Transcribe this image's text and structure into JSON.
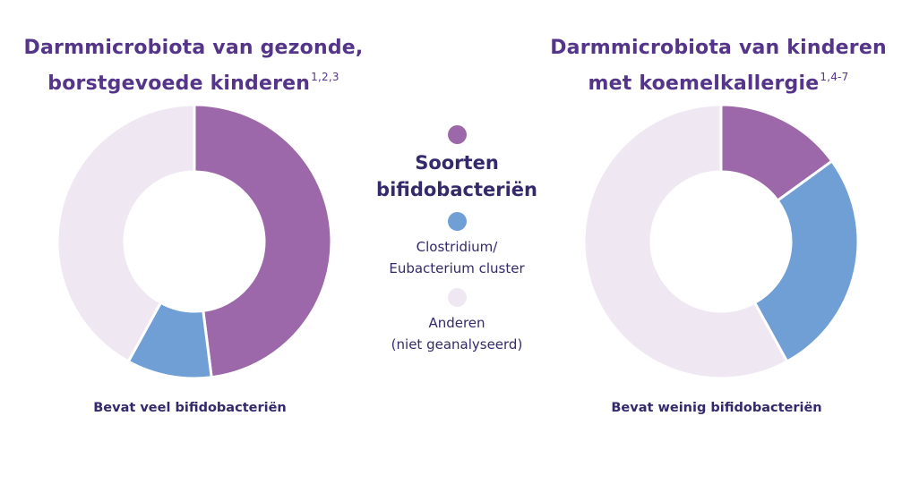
{
  "chart_data": [
    {
      "type": "donut",
      "title": "Darmmicrobiota van gezonde, borstgevoede kinderen",
      "title_sup": "1,2,3",
      "caption": "Bevat veel bifidobacteriën",
      "slices": [
        {
          "label": "Soorten bifidobacteriën",
          "value": 48,
          "color": "#9d68a9"
        },
        {
          "label": "Clostridium/ Eubacterium cluster",
          "value": 10,
          "color": "#6f9fd5"
        },
        {
          "label": "Anderen (niet geanalyseerd)",
          "value": 42,
          "color": "#efe8f3"
        }
      ]
    },
    {
      "type": "donut",
      "title": "Darmmicrobiota van kinderen met koemelkallergie",
      "title_sup": "1,4-7",
      "caption": "Bevat weinig bifidobacteriën",
      "slices": [
        {
          "label": "Soorten bifidobacteriën",
          "value": 15,
          "color": "#9d68a9"
        },
        {
          "label": "Clostridium/ Eubacterium cluster",
          "value": 27,
          "color": "#6f9fd5"
        },
        {
          "label": "Anderen (niet geanalyseerd)",
          "value": 58,
          "color": "#efe8f3"
        }
      ]
    }
  ],
  "legend": [
    {
      "line1": "Soorten",
      "line2": "bifidobacteriën",
      "color": "#9d68a9"
    },
    {
      "line1": "Clostridium/",
      "line2": "Eubacterium cluster",
      "color": "#6f9fd5"
    },
    {
      "line1": "Anderen",
      "line2": "(niet geanalyseerd)",
      "color": "#efe8f3"
    }
  ],
  "titles": {
    "left": {
      "line1": "Darmmicrobiota van gezonde,",
      "line2": "borstgevoede kinderen",
      "sup": "1,2,3"
    },
    "right": {
      "line1": "Darmmicrobiota van kinderen",
      "line2": "met koemelkallergie",
      "sup": "1,4-7"
    }
  },
  "captions": {
    "left": "Bevat veel bifidobacteriën",
    "right": "Bevat weinig bifidobacteriën"
  }
}
